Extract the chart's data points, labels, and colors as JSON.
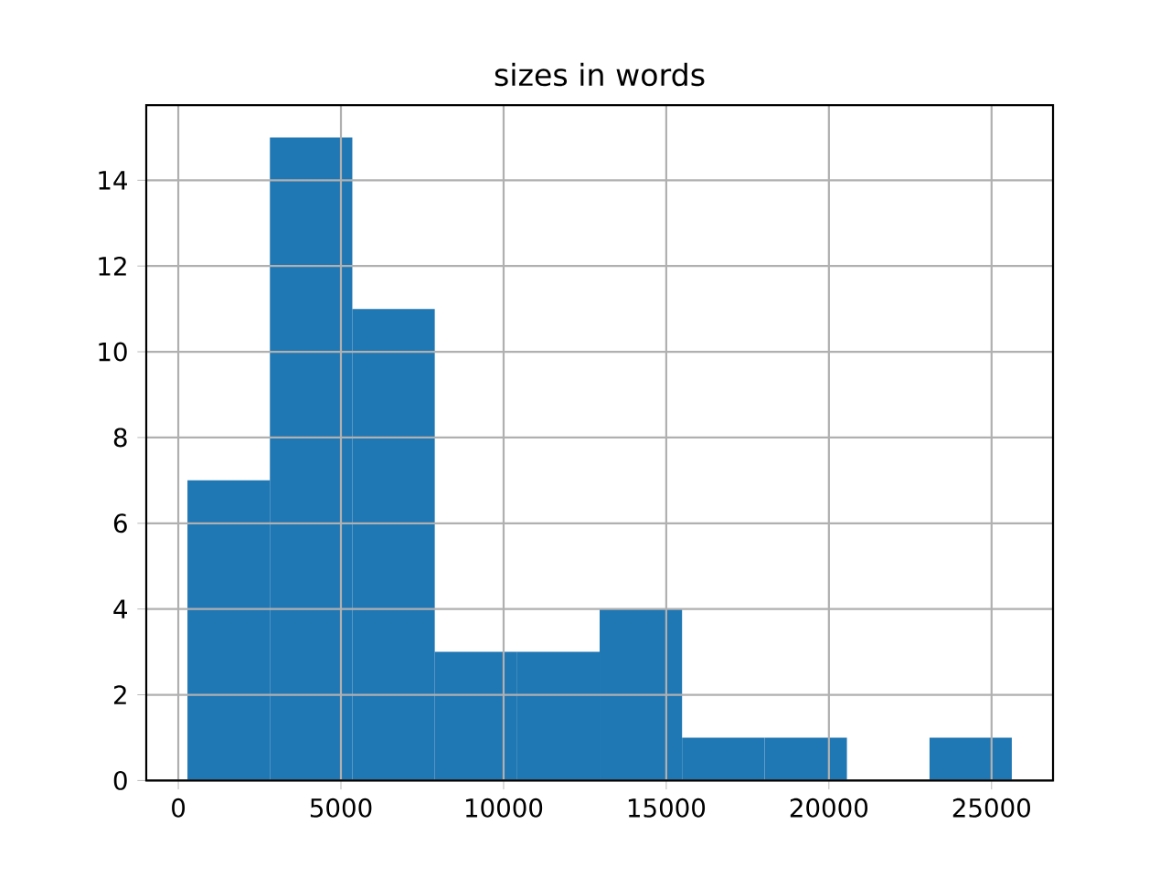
{
  "chart_data": {
    "type": "histogram",
    "title": "sizes in words",
    "bins": [
      282,
      2816,
      5350,
      7884,
      10418,
      12952,
      15486,
      18020,
      20554,
      23088,
      25622
    ],
    "values": [
      7,
      15,
      11,
      3,
      3,
      4,
      1,
      1,
      0,
      1
    ],
    "color": "#1f77b4",
    "xlim": [
      -985,
      26889
    ],
    "ylim": [
      0,
      15.75
    ],
    "xticks": [
      0,
      5000,
      10000,
      15000,
      20000,
      25000
    ],
    "yticks": [
      0,
      2,
      4,
      6,
      8,
      10,
      12,
      14
    ],
    "grid": true
  }
}
